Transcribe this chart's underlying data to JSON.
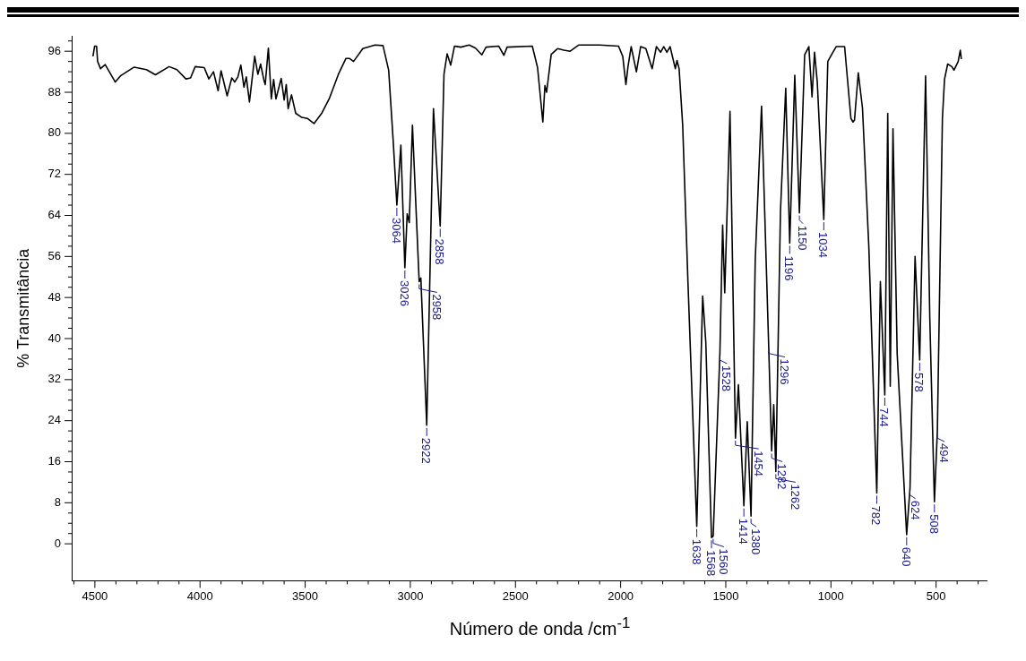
{
  "chart_data": {
    "type": "line",
    "xlabel": "Número de onda /cm$^{-1}$",
    "ylabel": "% Transmitância",
    "xlim": [
      4610,
      260
    ],
    "ylim": [
      -7.2,
      99
    ],
    "xticks": [
      {
        "value": 4600,
        "label": null
      },
      4500,
      {
        "value": 4400,
        "label": null
      },
      {
        "value": 4300,
        "label": null
      },
      {
        "value": 4200,
        "label": null
      },
      {
        "value": 4100,
        "label": null
      },
      4000,
      {
        "value": 3900,
        "label": null
      },
      {
        "value": 3800,
        "label": null
      },
      {
        "value": 3700,
        "label": null
      },
      {
        "value": 3600,
        "label": null
      },
      3500,
      {
        "value": 3400,
        "label": null
      },
      {
        "value": 3300,
        "label": null
      },
      {
        "value": 3200,
        "label": null
      },
      {
        "value": 3100,
        "label": null
      },
      3000,
      {
        "value": 2900,
        "label": null
      },
      {
        "value": 2800,
        "label": null
      },
      {
        "value": 2700,
        "label": null
      },
      {
        "value": 2600,
        "label": null
      },
      2500,
      {
        "value": 2400,
        "label": null
      },
      {
        "value": 2300,
        "label": null
      },
      {
        "value": 2200,
        "label": null
      },
      {
        "value": 2100,
        "label": null
      },
      2000,
      {
        "value": 1900,
        "label": null
      },
      {
        "value": 1800,
        "label": null
      },
      {
        "value": 1700,
        "label": null
      },
      {
        "value": 1600,
        "label": null
      },
      1500,
      {
        "value": 1400,
        "label": null
      },
      {
        "value": 1300,
        "label": null
      },
      {
        "value": 1200,
        "label": null
      },
      {
        "value": 1100,
        "label": null
      },
      1000,
      {
        "value": 900,
        "label": null
      },
      {
        "value": 800,
        "label": null
      },
      {
        "value": 700,
        "label": null
      },
      {
        "value": 600,
        "label": null
      },
      500,
      {
        "value": 400,
        "label": null
      },
      {
        "value": 300,
        "label": null
      }
    ],
    "yticks": [
      0,
      {
        "value": 2,
        "label": null
      },
      {
        "value": 4,
        "label": null
      },
      {
        "value": 6,
        "label": null
      },
      8,
      {
        "value": 10,
        "label": null
      },
      {
        "value": 12,
        "label": null
      },
      {
        "value": 14,
        "label": null
      },
      16,
      {
        "value": 18,
        "label": null
      },
      {
        "value": 20,
        "label": null
      },
      {
        "value": 22,
        "label": null
      },
      24,
      {
        "value": 26,
        "label": null
      },
      {
        "value": 28,
        "label": null
      },
      {
        "value": 30,
        "label": null
      },
      32,
      {
        "value": 34,
        "label": null
      },
      {
        "value": 36,
        "label": null
      },
      {
        "value": 38,
        "label": null
      },
      40,
      {
        "value": 42,
        "label": null
      },
      {
        "value": 44,
        "label": null
      },
      {
        "value": 46,
        "label": null
      },
      48,
      {
        "value": 50,
        "label": null
      },
      {
        "value": 52,
        "label": null
      },
      {
        "value": 54,
        "label": null
      },
      56,
      {
        "value": 58,
        "label": null
      },
      {
        "value": 60,
        "label": null
      },
      {
        "value": 62,
        "label": null
      },
      64,
      {
        "value": 66,
        "label": null
      },
      {
        "value": 68,
        "label": null
      },
      {
        "value": 70,
        "label": null
      },
      72,
      {
        "value": 74,
        "label": null
      },
      {
        "value": 76,
        "label": null
      },
      {
        "value": 78,
        "label": null
      },
      80,
      {
        "value": 82,
        "label": null
      },
      {
        "value": 84,
        "label": null
      },
      {
        "value": 86,
        "label": null
      },
      88,
      {
        "value": 90,
        "label": null
      },
      {
        "value": 92,
        "label": null
      },
      {
        "value": 94,
        "label": null
      },
      96,
      {
        "value": 98,
        "label": null
      }
    ],
    "grid": false,
    "legend": false,
    "marker": "none",
    "line_style": "solid",
    "series": [
      {
        "color": "#000000",
        "x": [
          4509,
          4501,
          4492,
          4487,
          4473,
          4451,
          4403,
          4378,
          4313,
          4255,
          4212,
          4147,
          4110,
          4067,
          4045,
          4023,
          3980,
          3958,
          3936,
          3914,
          3900,
          3871,
          3849,
          3835,
          3820,
          3806,
          3791,
          3780,
          3765,
          3740,
          3725,
          3712,
          3697,
          3690,
          3675,
          3661,
          3650,
          3639,
          3614,
          3600,
          3590,
          3581,
          3565,
          3545,
          3516,
          3490,
          3458,
          3420,
          3386,
          3342,
          3306,
          3290,
          3270,
          3226,
          3168,
          3130,
          3103,
          3081,
          3064,
          3045,
          3026,
          3015,
          3005,
          2990,
          2958,
          2950,
          2922,
          2890,
          2858,
          2840,
          2825,
          2808,
          2790,
          2760,
          2720,
          2690,
          2660,
          2640,
          2580,
          2555,
          2540,
          2420,
          2395,
          2370,
          2360,
          2352,
          2330,
          2300,
          2270,
          2240,
          2200,
          2100,
          2010,
          1990,
          1975,
          1965,
          1950,
          1925,
          1905,
          1880,
          1850,
          1830,
          1810,
          1795,
          1780,
          1765,
          1740,
          1732,
          1722,
          1705,
          1680,
          1638,
          1610,
          1595,
          1568,
          1560,
          1528,
          1515,
          1505,
          1480,
          1454,
          1440,
          1414,
          1398,
          1380,
          1360,
          1330,
          1296,
          1282,
          1272,
          1262,
          1240,
          1215,
          1196,
          1172,
          1150,
          1125,
          1105,
          1090,
          1078,
          1065,
          1034,
          1015,
          995,
          975,
          935,
          905,
          895,
          888,
          870,
          850,
          820,
          782,
          765,
          744,
          730,
          718,
          705,
          685,
          640,
          624,
          600,
          578,
          550,
          530,
          508,
          494,
          470,
          460,
          445,
          425,
          415,
          395,
          385,
          380
        ],
        "values": [
          95.0,
          97.0,
          97.0,
          94.0,
          92.6,
          93.4,
          90.0,
          91.2,
          92.9,
          92.4,
          91.4,
          93.0,
          92.4,
          90.6,
          90.8,
          93.0,
          92.8,
          90.6,
          92.0,
          88.3,
          92.2,
          87.3,
          90.8,
          90.0,
          91.0,
          93.3,
          89.0,
          91.0,
          86.1,
          95.0,
          91.5,
          93.5,
          90.5,
          89.5,
          96.6,
          86.7,
          90.5,
          86.7,
          90.7,
          86.5,
          89.5,
          84.8,
          87.5,
          83.9,
          83.1,
          82.9,
          81.9,
          84.0,
          86.7,
          91.5,
          94.6,
          94.6,
          94.0,
          96.5,
          97.2,
          97.1,
          92.3,
          78.2,
          66.0,
          77.7,
          53.8,
          64.3,
          62.6,
          81.6,
          51.1,
          51.8,
          23.1,
          84.8,
          61.9,
          91.5,
          95.5,
          93.3,
          97.0,
          96.8,
          97.2,
          96.6,
          95.3,
          96.8,
          97.0,
          95.2,
          96.8,
          97.0,
          92.8,
          82.2,
          89.3,
          88.0,
          95.4,
          96.5,
          96.2,
          96.0,
          97.2,
          97.2,
          97.0,
          95.0,
          89.5,
          93.0,
          96.9,
          92.0,
          96.9,
          96.5,
          92.6,
          96.9,
          95.8,
          96.9,
          95.8,
          96.9,
          92.6,
          94.2,
          92.6,
          81.6,
          51.1,
          3.4,
          48.3,
          39.3,
          1.2,
          1.5,
          37.2,
          62.1,
          48.9,
          84.3,
          20.6,
          31.0,
          7.4,
          23.8,
          5.4,
          55.3,
          85.3,
          38.5,
          18.1,
          27.1,
          14.1,
          64.8,
          88.8,
          58.6,
          91.3,
          64.5,
          95.3,
          96.9,
          87.1,
          95.8,
          90.0,
          63.2,
          94.0,
          95.5,
          96.9,
          96.9,
          82.9,
          82.2,
          82.6,
          91.8,
          84.9,
          58.0,
          9.9,
          51.1,
          29.0,
          83.9,
          30.7,
          80.9,
          37.0,
          1.8,
          10.9,
          56.0,
          35.8,
          91.2,
          44.0,
          8.2,
          22.0,
          82.9,
          90.5,
          93.5,
          93.0,
          92.3,
          94.0,
          96.2,
          94.5
        ]
      }
    ],
    "annotations": [
      {
        "text": "3064",
        "x": 3064,
        "y": 66.0
      },
      {
        "text": "3026",
        "x": 3026,
        "y": 53.8
      },
      {
        "text": "2958",
        "x": 2958,
        "y": 51.1
      },
      {
        "text": "2922",
        "x": 2922,
        "y": 23.1
      },
      {
        "text": "2858",
        "x": 2858,
        "y": 61.9
      },
      {
        "text": "1638",
        "x": 1638,
        "y": 3.4
      },
      {
        "text": "1568",
        "x": 1568,
        "y": 1.2
      },
      {
        "text": "1560",
        "x": 1560,
        "y": 1.5
      },
      {
        "text": "1528",
        "x": 1528,
        "y": 37.2
      },
      {
        "text": "1454",
        "x": 1454,
        "y": 20.6
      },
      {
        "text": "1414",
        "x": 1414,
        "y": 7.4
      },
      {
        "text": "1380",
        "x": 1380,
        "y": 5.4
      },
      {
        "text": "1296",
        "x": 1296,
        "y": 38.5
      },
      {
        "text": "1282",
        "x": 1282,
        "y": 18.1
      },
      {
        "text": "1262",
        "x": 1262,
        "y": 14.1
      },
      {
        "text": "1196",
        "x": 1196,
        "y": 58.6
      },
      {
        "text": "1150",
        "x": 1150,
        "y": 64.5
      },
      {
        "text": "1034",
        "x": 1034,
        "y": 63.2
      },
      {
        "text": "782",
        "x": 782,
        "y": 9.9
      },
      {
        "text": "744",
        "x": 744,
        "y": 29.0
      },
      {
        "text": "640",
        "x": 640,
        "y": 1.8
      },
      {
        "text": "624",
        "x": 624,
        "y": 10.9
      },
      {
        "text": "578",
        "x": 578,
        "y": 35.8
      },
      {
        "text": "508",
        "x": 508,
        "y": 8.2
      },
      {
        "text": "494",
        "x": 494,
        "y": 22.0
      }
    ]
  }
}
